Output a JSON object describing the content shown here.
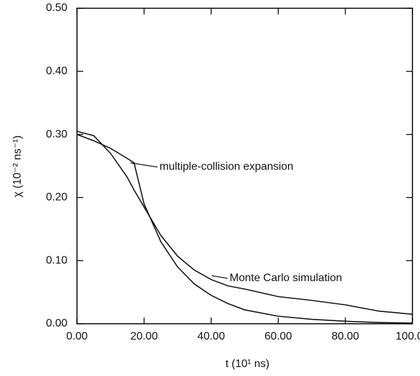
{
  "chart_data": {
    "type": "line",
    "xlabel": "t (10¹ ns)",
    "ylabel": "χ (10⁻² ns⁻¹)",
    "x": [
      0,
      5,
      10,
      15,
      17,
      20,
      25,
      30,
      35,
      40,
      45,
      50,
      60,
      70,
      80,
      90,
      100
    ],
    "series": [
      {
        "name": "multiple-collision expansion",
        "color": "#111111",
        "values": [
          0.3,
          0.29,
          0.278,
          0.262,
          0.255,
          0.19,
          0.13,
          0.09,
          0.063,
          0.045,
          0.032,
          0.022,
          0.012,
          0.007,
          0.004,
          0.002,
          0.001
        ]
      },
      {
        "name": "Monte Carlo simulation",
        "color": "#111111",
        "values": [
          0.305,
          0.298,
          0.27,
          0.232,
          0.212,
          0.185,
          0.14,
          0.107,
          0.085,
          0.07,
          0.06,
          0.055,
          0.043,
          0.037,
          0.03,
          0.02,
          0.015
        ]
      }
    ],
    "xlim": [
      0,
      100
    ],
    "ylim": [
      0,
      0.5
    ],
    "xticks": [
      {
        "value": 0,
        "label": "0.00"
      },
      {
        "value": 20,
        "label": "20.00"
      },
      {
        "value": 40,
        "label": "40.00"
      },
      {
        "value": 60,
        "label": "60.00"
      },
      {
        "value": 80,
        "label": "80.00"
      },
      {
        "value": 100,
        "label": "100.00"
      }
    ],
    "yticks": [
      {
        "value": 0,
        "label": "0.00"
      },
      {
        "value": 0.1,
        "label": "0.10"
      },
      {
        "value": 0.2,
        "label": "0.20"
      },
      {
        "value": 0.3,
        "label": "0.30"
      },
      {
        "value": 0.4,
        "label": "0.40"
      },
      {
        "value": 0.5,
        "label": "0.50"
      }
    ],
    "grid": false
  }
}
